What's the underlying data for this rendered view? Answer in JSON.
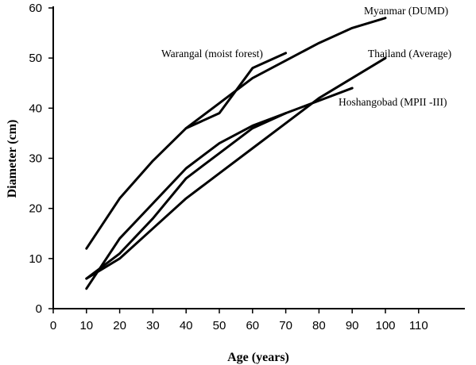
{
  "chart_data": {
    "type": "line",
    "xlabel": "Age (years)",
    "ylabel": "Diameter (cm)",
    "xlim": [
      0,
      120
    ],
    "ylim": [
      0,
      60
    ],
    "x_ticks": [
      "0",
      "10",
      "20",
      "30",
      "40",
      "50",
      "60",
      "70",
      "80",
      "90",
      "100",
      "110"
    ],
    "y_ticks": [
      "0",
      "10",
      "20",
      "30",
      "40",
      "50",
      "60"
    ],
    "grid": false,
    "series": [
      {
        "name": "Myanmar (DUMD)",
        "x": [
          10,
          20,
          30,
          40,
          50,
          60,
          70,
          80,
          90,
          100
        ],
        "y": [
          12,
          22,
          29.5,
          36,
          41,
          46,
          49.5,
          53,
          56,
          58
        ]
      },
      {
        "name": "Warangal (moist forest)",
        "x": [
          10,
          20,
          30,
          40,
          50,
          60,
          70
        ],
        "y": [
          6,
          11,
          18,
          26,
          31,
          36,
          39
        ]
      },
      {
        "name": "Thailand (Average)",
        "x": [
          10,
          20,
          30,
          40,
          50,
          60,
          70,
          80,
          90,
          100
        ],
        "y": [
          6,
          10,
          16,
          22,
          27,
          32,
          37,
          42,
          46,
          50
        ]
      },
      {
        "name": "Hoshangobad (MPII -III)",
        "x": [
          10,
          20,
          30,
          40,
          50,
          60,
          70,
          80,
          90
        ],
        "y": [
          4,
          14,
          21,
          28,
          33,
          36.5,
          39,
          41.5,
          44
        ]
      }
    ],
    "extra_line": {
      "x": [
        40,
        50,
        60,
        70
      ],
      "y": [
        36,
        39,
        48,
        51
      ]
    },
    "labels": {
      "myanmar": "Myanmar (DUMD)",
      "warangal": "Warangal (moist forest)",
      "thailand": "Thailand (Average)",
      "hoshangobad": "Hoshangobad (MPII -III)"
    }
  }
}
